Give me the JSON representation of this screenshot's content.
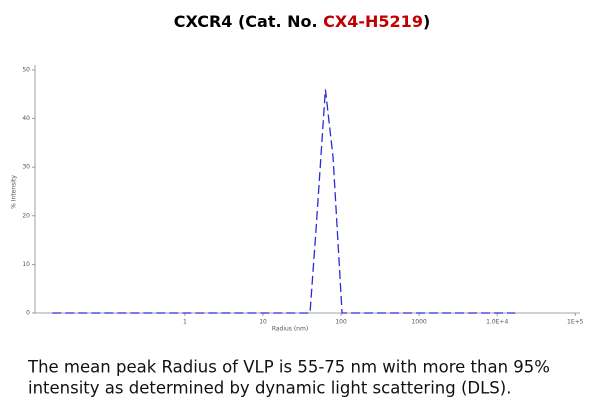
{
  "chart_data": {
    "type": "line",
    "title_parts": [
      {
        "text": "CXCR4  (Cat. No. ",
        "color": "#000000"
      },
      {
        "text": "CX4-H5219",
        "color": "#c00000"
      },
      {
        "text": ")",
        "color": "#000000"
      }
    ],
    "xlabel": "Radius (nm)",
    "ylabel": "% Intensity",
    "x": [
      0.02,
      40,
      47.7,
      63,
      79,
      103,
      17000
    ],
    "series": [
      {
        "name": "% Intensity",
        "color": "#2b2bd9",
        "values": [
          0,
          0,
          17,
          46,
          32,
          0,
          0
        ]
      }
    ],
    "xlog": true,
    "xlim": [
      0.012,
      115000
    ],
    "ylim": [
      0,
      50
    ],
    "xticks": [
      1,
      10,
      100,
      1000,
      {
        "value": 10000,
        "label": "1.0E+4"
      },
      {
        "value": 100000,
        "label": "1E+5"
      }
    ],
    "yticks": [
      0,
      10,
      20,
      30,
      40,
      50
    ]
  },
  "caption": [
    "The mean peak Radius of VLP is 55-75 nm with more than 95%",
    "intensity as determined by dynamic light scattering (DLS)."
  ]
}
